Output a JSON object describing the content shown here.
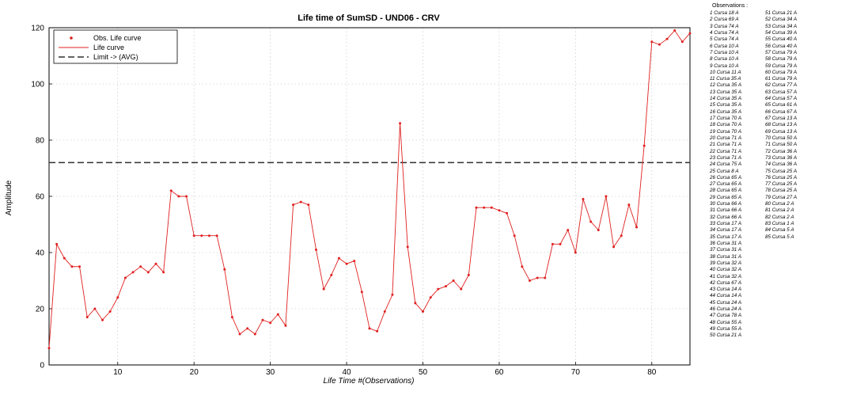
{
  "chart_data": {
    "type": "line",
    "title": "Life time of SumSD - UND06 - CRV",
    "xlabel": "Life Time #(Observations)",
    "ylabel": "Amplitude",
    "xlim": [
      1,
      85
    ],
    "ylim": [
      0,
      120
    ],
    "xticks": [
      10,
      20,
      30,
      40,
      50,
      60,
      70,
      80
    ],
    "yticks": [
      0,
      20,
      40,
      60,
      80,
      100,
      120
    ],
    "grid": true,
    "legend_position": "top-left",
    "limit_value": 72,
    "colors": {
      "series": "#e02020",
      "limit": "#303030",
      "grid": "#bdbdbd"
    },
    "series": [
      {
        "name": "Obs. Life curve",
        "style": "dots"
      },
      {
        "name": "Life curve",
        "style": "line"
      },
      {
        "name": "Limit -> (AVG)",
        "style": "dashed"
      }
    ],
    "x": [
      1,
      2,
      3,
      4,
      5,
      6,
      7,
      8,
      9,
      10,
      11,
      12,
      13,
      14,
      15,
      16,
      17,
      18,
      19,
      20,
      21,
      22,
      23,
      24,
      25,
      26,
      27,
      28,
      29,
      30,
      31,
      32,
      33,
      34,
      35,
      36,
      37,
      38,
      39,
      40,
      41,
      42,
      43,
      44,
      45,
      46,
      47,
      48,
      49,
      50,
      51,
      52,
      53,
      54,
      55,
      56,
      57,
      58,
      59,
      60,
      61,
      62,
      63,
      64,
      65,
      66,
      67,
      68,
      69,
      70,
      71,
      72,
      73,
      74,
      75,
      76,
      77,
      78,
      79,
      80,
      81,
      82,
      83,
      84,
      85
    ],
    "y": [
      6,
      43,
      38,
      35,
      35,
      17,
      20,
      16,
      19,
      24,
      31,
      33,
      35,
      33,
      36,
      33,
      62,
      60,
      60,
      46,
      46,
      46,
      46,
      34,
      17,
      11,
      13,
      11,
      16,
      15,
      18,
      14,
      57,
      58,
      57,
      41,
      27,
      32,
      38,
      36,
      37,
      26,
      13,
      12,
      19,
      25,
      86,
      42,
      22,
      19,
      24,
      27,
      28,
      30,
      27,
      32,
      56,
      56,
      56,
      55,
      54,
      46,
      35,
      30,
      31,
      31,
      43,
      43,
      48,
      40,
      59,
      51,
      48,
      60,
      42,
      46,
      57,
      49,
      78,
      115,
      114,
      116,
      119,
      115,
      118
    ]
  },
  "observations": {
    "title": "Observations :",
    "col1": [
      "1 Cursa 18 A",
      "2 Cursa 69 A",
      "3 Cursa 74 A",
      "4 Cursa 74 A",
      "5 Cursa 74 A",
      "6 Cursa 10 A",
      "7 Cursa 10 A",
      "8 Cursa 10 A",
      "9 Cursa 10 A",
      "10 Cursa 11 A",
      "11 Cursa 35 A",
      "12 Cursa 35 A",
      "13 Cursa 35 A",
      "14 Cursa 35 A",
      "15 Cursa 35 A",
      "16 Cursa 35 A",
      "17 Cursa 70 A",
      "18 Cursa 70 A",
      "19 Cursa 70 A",
      "20 Cursa 71 A",
      "21 Cursa 71 A",
      "22 Cursa 71 A",
      "23 Cursa 71 A",
      "24 Cursa 75 A",
      "25 Cursa 8 A",
      "26 Cursa 65 A",
      "27 Cursa 65 A",
      "28 Cursa 65 A",
      "29 Cursa 65 A",
      "30 Cursa 66 A",
      "31 Cursa 66 A",
      "32 Cursa 66 A",
      "33 Cursa 17 A",
      "34 Cursa 17 A",
      "35 Cursa 17 A",
      "36 Cursa 31 A",
      "37 Cursa 31 A",
      "38 Cursa 31 A",
      "39 Cursa 32 A",
      "40 Cursa 32 A",
      "41 Cursa 32 A",
      "42 Cursa 67 A",
      "43 Cursa 14 A",
      "44 Cursa 14 A",
      "45 Cursa 24 A",
      "46 Cursa 24 A",
      "47 Cursa 78 A",
      "48 Cursa 55 A",
      "49 Cursa 55 A",
      "50 Cursa 21 A"
    ],
    "col2": [
      "51 Cursa 21 A",
      "52 Cursa 34 A",
      "53 Cursa 34 A",
      "54 Cursa 39 A",
      "55 Cursa 40 A",
      "56 Cursa 40 A",
      "57 Cursa 79 A",
      "58 Cursa 79 A",
      "59 Cursa 79 A",
      "60 Cursa 79 A",
      "61 Cursa 79 A",
      "62 Cursa 77 A",
      "63 Cursa 57 A",
      "64 Cursa 57 A",
      "65 Cursa 61 A",
      "66 Cursa 67 A",
      "67 Cursa 13 A",
      "68 Cursa 13 A",
      "69 Cursa 13 A",
      "70 Cursa 50 A",
      "71 Cursa 50 A",
      "72 Cursa 36 A",
      "73 Cursa 36 A",
      "74 Cursa 36 A",
      "75 Cursa 25 A",
      "76 Cursa 25 A",
      "77 Cursa 25 A",
      "78 Cursa 25 A",
      "79 Cursa 27 A",
      "80 Cursa 2 A",
      "81 Cursa 2 A",
      "82 Cursa 2 A",
      "83 Cursa 1 A",
      "84 Cursa 5 A",
      "85 Cursa 5 A"
    ]
  }
}
